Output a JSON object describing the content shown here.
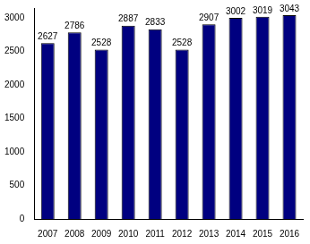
{
  "chart_data": {
    "type": "bar",
    "categories": [
      "2007",
      "2008",
      "2009",
      "2010",
      "2011",
      "2012",
      "2013",
      "2014",
      "2015",
      "2016"
    ],
    "values": [
      2627,
      2786,
      2528,
      2887,
      2833,
      2528,
      2907,
      3002,
      3019,
      3043
    ],
    "color": "#000080",
    "ylim": [
      0,
      3150
    ],
    "yticks": [
      0,
      500,
      1000,
      1500,
      2000,
      2500,
      3000
    ],
    "grid": false,
    "data_labels": true
  }
}
